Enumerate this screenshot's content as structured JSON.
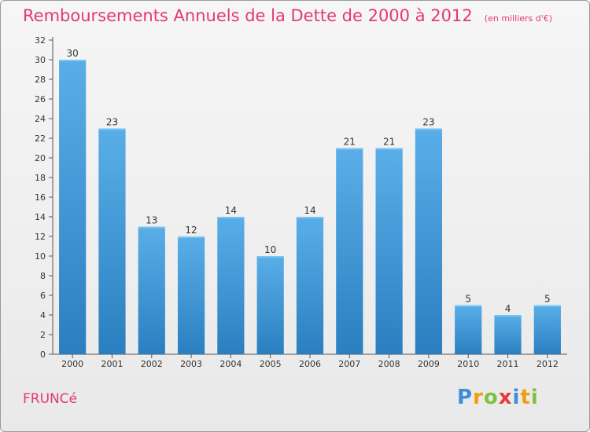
{
  "chart_data": {
    "type": "bar",
    "title": "Remboursements Annuels de la Dette de 2000 à 2012",
    "subtitle": "(en milliers d'€)",
    "categories": [
      "2000",
      "2001",
      "2002",
      "2003",
      "2004",
      "2005",
      "2006",
      "2007",
      "2008",
      "2009",
      "2010",
      "2011",
      "2012"
    ],
    "values": [
      30,
      23,
      13,
      12,
      14,
      10,
      14,
      21,
      21,
      23,
      5,
      4,
      5
    ],
    "ylim": [
      0,
      32
    ],
    "yticks": [
      0,
      2,
      4,
      6,
      8,
      10,
      12,
      14,
      16,
      18,
      20,
      22,
      24,
      26,
      28,
      30,
      32
    ],
    "xlabel": "",
    "ylabel": "",
    "grid": false,
    "colors": {
      "bar_light": "#5aaee8",
      "bar_dark": "#2a7fc0",
      "title": "#e5396e"
    }
  },
  "footer": {
    "commune": "FRUNCé",
    "logo": {
      "letters": [
        "P",
        "r",
        "o",
        "x",
        "i",
        "t",
        "i"
      ],
      "colors": [
        "#3b8fd6",
        "#f39c12",
        "#7cc242",
        "#e53935",
        "#3b8fd6",
        "#f39c12",
        "#7cc242"
      ]
    }
  }
}
